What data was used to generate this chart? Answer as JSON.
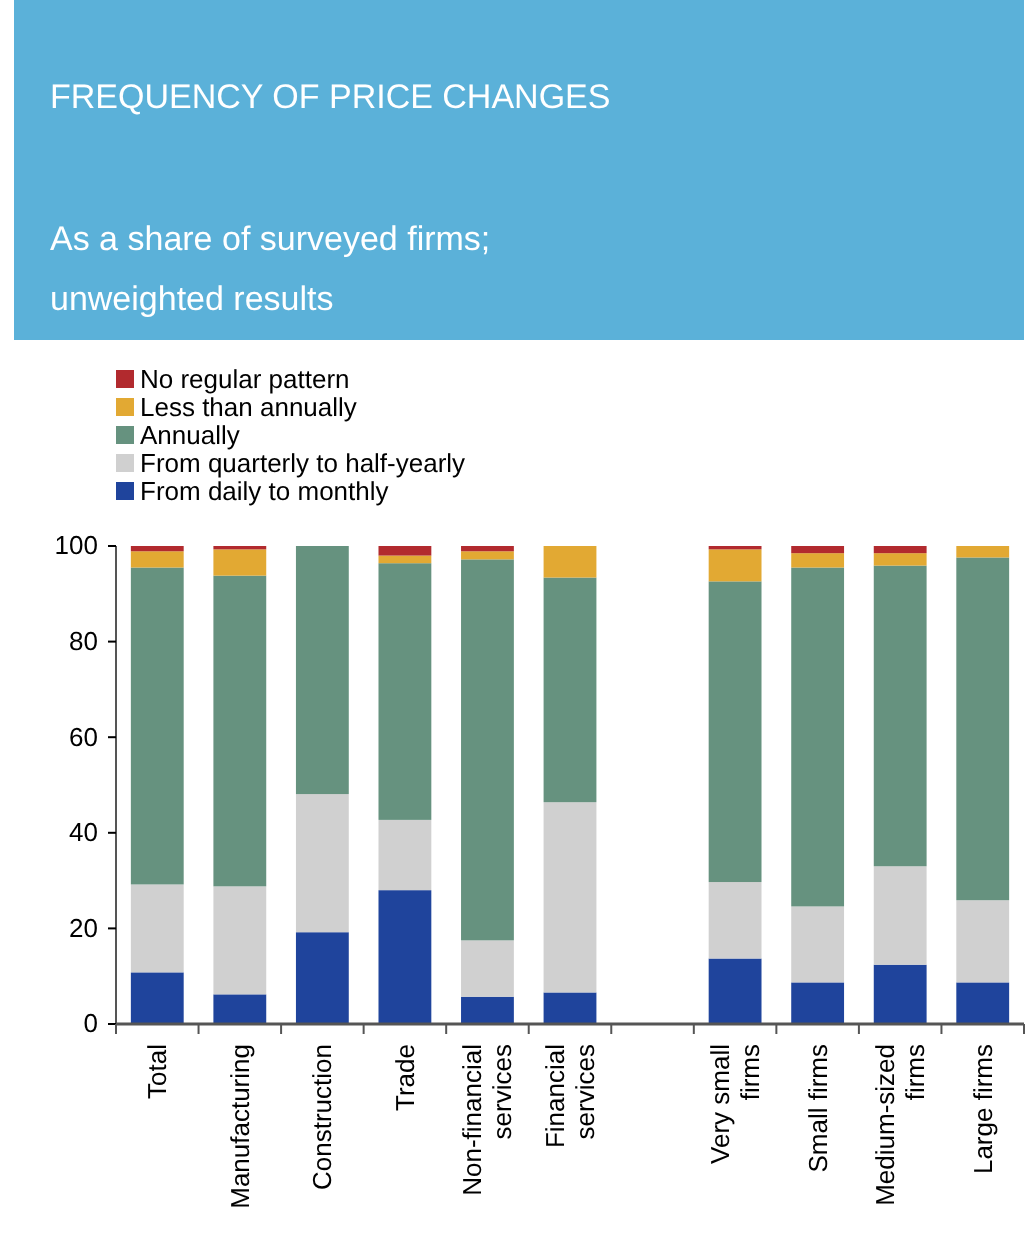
{
  "chart_data": {
    "type": "bar",
    "title": "FREQUENCY OF PRICE CHANGES",
    "subtitle": "As a share of surveyed firms; unweighted results",
    "categories": [
      "Total",
      "Manufacturing",
      "Construction",
      "Trade",
      "Non-financial services",
      "Financial services",
      null,
      "Very small firms",
      "Small firms",
      "Medium-sized firms",
      "Large firms"
    ],
    "stacked": true,
    "ylim": [
      0,
      100
    ],
    "yticks": [
      0,
      20,
      40,
      60,
      80,
      100
    ],
    "legend": "top left",
    "grid": false,
    "series": [
      {
        "name": "From daily to monthly",
        "color": "#1f449c",
        "values": [
          10.8,
          6.2,
          19.2,
          28.0,
          5.7,
          6.6,
          null,
          13.7,
          8.7,
          12.4,
          8.7
        ]
      },
      {
        "name": "From quarterly to half-yearly",
        "color": "#d0d0d0",
        "values": [
          18.4,
          22.6,
          28.9,
          14.7,
          11.8,
          39.8,
          null,
          16.0,
          15.9,
          20.6,
          17.2
        ]
      },
      {
        "name": "Annually",
        "color": "#66927f",
        "values": [
          66.3,
          65.0,
          51.9,
          53.7,
          79.7,
          47.0,
          null,
          62.9,
          70.9,
          62.9,
          71.7
        ]
      },
      {
        "name": "Less than annually",
        "color": "#e2a933",
        "values": [
          3.4,
          5.5,
          0,
          1.6,
          1.7,
          6.6,
          null,
          6.7,
          3.0,
          2.6,
          2.4
        ]
      },
      {
        "name": "No regular pattern",
        "color": "#b22a2e",
        "values": [
          1.1,
          0.7,
          0,
          2.0,
          1.1,
          0,
          null,
          0.7,
          1.5,
          1.5,
          0
        ]
      }
    ]
  }
}
